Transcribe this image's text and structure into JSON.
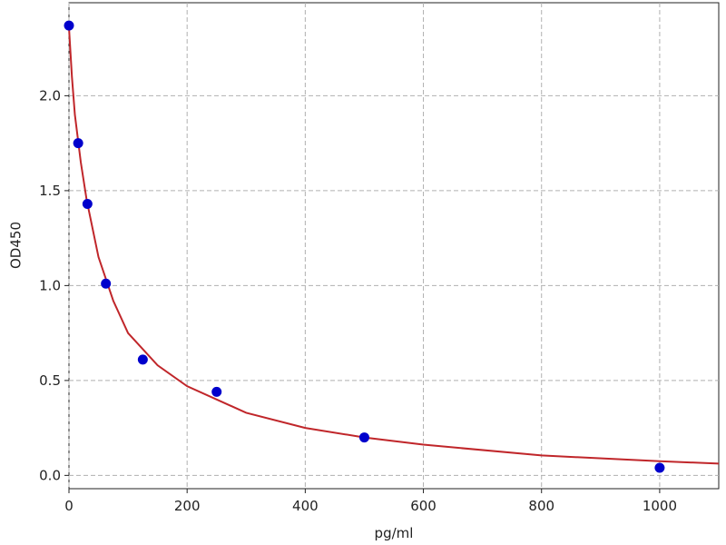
{
  "chart_data": {
    "type": "scatter",
    "xlabel": "pg/ml",
    "ylabel": "OD450",
    "xlim": [
      0,
      1100
    ],
    "ylim": [
      -0.07,
      2.49
    ],
    "xticks": [
      0,
      200,
      400,
      600,
      800,
      1000
    ],
    "yticks": [
      {
        "value": 0,
        "label": "0.0"
      },
      {
        "value": 0.5,
        "label": "0.5"
      },
      {
        "value": 1,
        "label": "1.0"
      },
      {
        "value": 1.5,
        "label": "1.5"
      },
      {
        "value": 2,
        "label": "2.0"
      }
    ],
    "grid": true,
    "series": [
      {
        "type": "line",
        "color": "#c0262a",
        "x": [
          0,
          5,
          10,
          20,
          30,
          50,
          75,
          100,
          150,
          200,
          300,
          400,
          500,
          600,
          800,
          1000,
          1100
        ],
        "values": [
          2.36,
          2.1,
          1.9,
          1.65,
          1.45,
          1.15,
          0.92,
          0.75,
          0.58,
          0.47,
          0.33,
          0.25,
          0.2,
          0.162,
          0.105,
          0.075,
          0.062
        ]
      },
      {
        "type": "scatter",
        "color": "#0000cc",
        "x": [
          0,
          15.6,
          31.25,
          62.5,
          125,
          250,
          500,
          1000
        ],
        "values": [
          2.37,
          1.75,
          1.43,
          1.01,
          0.61,
          0.44,
          0.2,
          0.04
        ]
      }
    ]
  }
}
